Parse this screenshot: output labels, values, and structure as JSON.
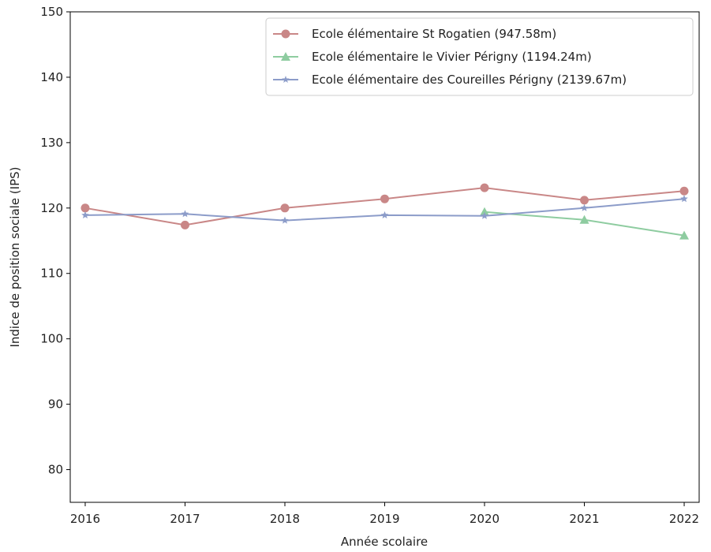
{
  "chart_data": {
    "type": "line",
    "title": "",
    "xlabel": "Année scolaire",
    "ylabel": "Indice de position sociale (IPS)",
    "x": [
      2016,
      2017,
      2018,
      2019,
      2020,
      2021,
      2022
    ],
    "xlim": [
      2015.85,
      2022.15
    ],
    "ylim": [
      75,
      150
    ],
    "yticks": [
      80,
      90,
      100,
      110,
      120,
      130,
      140,
      150
    ],
    "grid": false,
    "legend_position": "top-right",
    "series": [
      {
        "name": "Ecole élémentaire St Rogatien (947.58m)",
        "color": "#c98787",
        "marker": "circle",
        "x": [
          2016,
          2017,
          2018,
          2019,
          2020,
          2021,
          2022
        ],
        "values": [
          120.0,
          117.4,
          120.0,
          121.4,
          123.1,
          121.2,
          122.6
        ]
      },
      {
        "name": "Ecole élémentaire le Vivier Périgny (1194.24m)",
        "color": "#8ecca0",
        "marker": "triangle",
        "x": [
          2020,
          2021,
          2022
        ],
        "values": [
          119.4,
          118.2,
          115.8
        ]
      },
      {
        "name": "Ecole élémentaire des Coureilles Périgny (2139.67m)",
        "color": "#8c9cc9",
        "marker": "star",
        "x": [
          2016,
          2017,
          2018,
          2019,
          2020,
          2021,
          2022
        ],
        "values": [
          118.9,
          119.1,
          118.1,
          118.9,
          118.8,
          120.0,
          121.4
        ]
      }
    ]
  }
}
